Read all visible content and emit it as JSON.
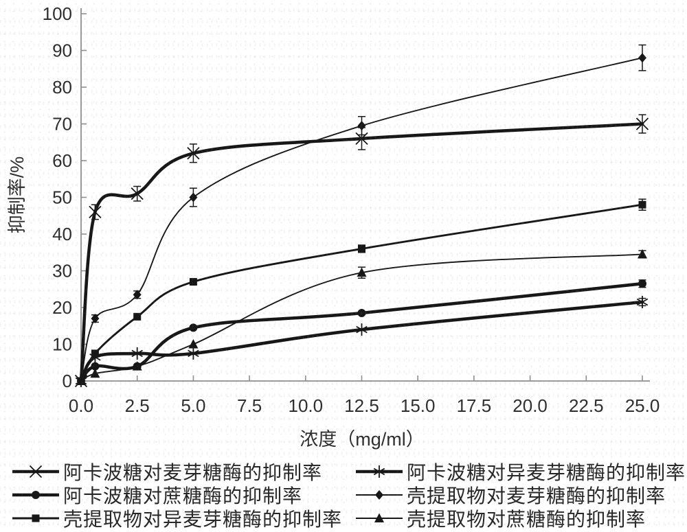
{
  "figure": {
    "background": "#ffffff",
    "ink": "#171717",
    "axis_color": "#8f8f8f",
    "text_color": "#2e2e2e"
  },
  "chart_data": {
    "type": "line",
    "title": "",
    "xlabel": "浓度（mg/ml）",
    "ylabel": "抑制率/%",
    "xlim": [
      0,
      25
    ],
    "ylim": [
      0,
      100
    ],
    "grid": false,
    "legend_position": "bottom, two columns, row-major",
    "x_tick_labels": [
      "0.0",
      "2.5",
      "5.0",
      "7.5",
      "10.0",
      "12.5",
      "15.0",
      "17.5",
      "20.0",
      "22.5",
      "25.0"
    ],
    "y_tick_labels": [
      "0",
      "10",
      "20",
      "30",
      "40",
      "50",
      "60",
      "70",
      "80",
      "90",
      "100"
    ],
    "x": [
      0,
      0.625,
      2.5,
      5,
      12.5,
      25
    ],
    "series": [
      {
        "name": "阿卡波糖对麦芽糖酶的抑制率",
        "marker": "x-cross",
        "weight": "thick",
        "values": [
          0,
          46,
          51,
          62,
          66,
          70
        ],
        "errors": [
          0,
          2,
          2,
          2.5,
          3,
          2.5
        ]
      },
      {
        "name": "阿卡波糖对异麦芽糖酶的抑制率",
        "marker": "asterisk",
        "weight": "thick",
        "values": [
          0,
          6.5,
          7.5,
          7.5,
          14,
          21.5
        ],
        "errors": [
          0,
          0,
          0,
          0,
          0,
          1
        ]
      },
      {
        "name": "阿卡波糖对蔗糖酶的抑制率",
        "marker": "circle",
        "weight": "thick",
        "values": [
          0,
          4,
          4,
          14.5,
          18.5,
          26.5
        ],
        "errors": [
          0,
          0,
          0,
          0,
          0,
          1
        ]
      },
      {
        "name": "壳提取物对麦芽糖酶的抑制率",
        "marker": "diamond",
        "weight": "thin",
        "values": [
          0,
          17,
          23.5,
          50,
          69.5,
          88
        ],
        "errors": [
          0,
          1,
          1,
          2.5,
          2.5,
          3.5
        ]
      },
      {
        "name": "壳提取物对异麦芽糖酶的抑制率",
        "marker": "square",
        "weight": "medium",
        "values": [
          0,
          7.5,
          17.5,
          27,
          36,
          48
        ],
        "errors": [
          0,
          0,
          0,
          0,
          1,
          1.5
        ]
      },
      {
        "name": "壳提取物对蔗糖酶的抑制率",
        "marker": "triangle",
        "weight": "thin",
        "values": [
          0,
          2,
          4,
          10,
          29.5,
          34.5
        ],
        "errors": [
          0,
          0,
          0,
          0,
          1.5,
          1
        ]
      }
    ]
  }
}
